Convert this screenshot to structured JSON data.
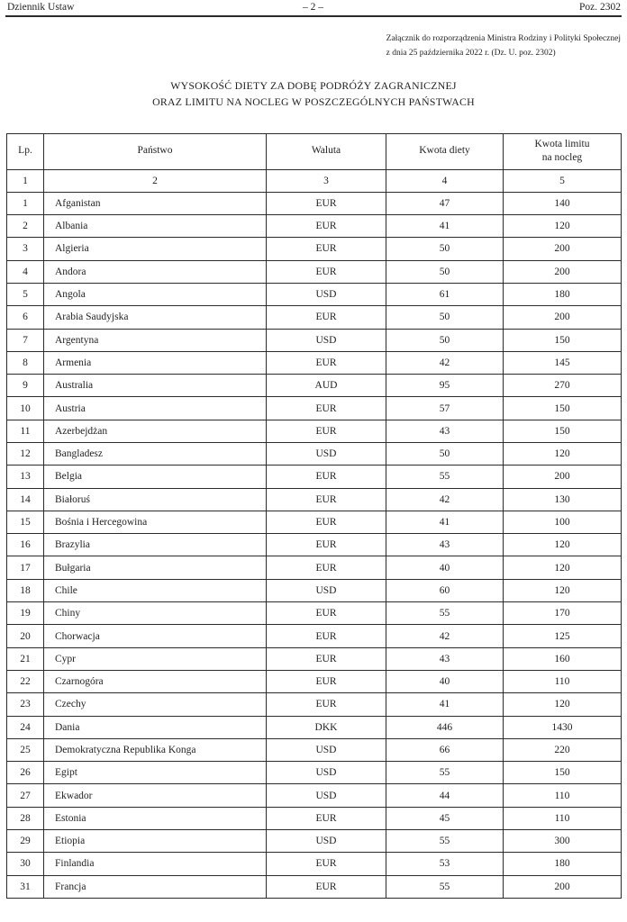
{
  "page_header": {
    "journal_name": "Dziennik Ustaw",
    "page_marker": "– 2 –",
    "position_marker": "Poz. 2302"
  },
  "annotation": {
    "line1": "Załącznik do rozporządzenia Ministra Rodziny i Polityki Społecznej",
    "line2": "z dnia 25 października 2022 r. (Dz. U. poz. 2302)"
  },
  "title": {
    "line1": "WYSOKOŚĆ DIETY ZA DOBĘ PODRÓŻY ZAGRANICZNEJ",
    "line2": "ORAZ LIMITU NA NOCLEG W POSZCZEGÓLNYCH PAŃSTWACH"
  },
  "table": {
    "headers": [
      "Lp.",
      "Państwo",
      "Waluta",
      "Kwota diety",
      "Kwota limitu\nna nocleg"
    ],
    "column_numbers": [
      "1",
      "2",
      "3",
      "4",
      "5"
    ],
    "rows": [
      {
        "lp": "1",
        "panstwo": "Afganistan",
        "waluta": "EUR",
        "kwota_diety": "47",
        "kwota_limitu": "140"
      },
      {
        "lp": "2",
        "panstwo": "Albania",
        "waluta": "EUR",
        "kwota_diety": "41",
        "kwota_limitu": "120"
      },
      {
        "lp": "3",
        "panstwo": "Algieria",
        "waluta": "EUR",
        "kwota_diety": "50",
        "kwota_limitu": "200"
      },
      {
        "lp": "4",
        "panstwo": "Andora",
        "waluta": "EUR",
        "kwota_diety": "50",
        "kwota_limitu": "200"
      },
      {
        "lp": "5",
        "panstwo": "Angola",
        "waluta": "USD",
        "kwota_diety": "61",
        "kwota_limitu": "180"
      },
      {
        "lp": "6",
        "panstwo": "Arabia Saudyjska",
        "waluta": "EUR",
        "kwota_diety": "50",
        "kwota_limitu": "200"
      },
      {
        "lp": "7",
        "panstwo": "Argentyna",
        "waluta": "USD",
        "kwota_diety": "50",
        "kwota_limitu": "150"
      },
      {
        "lp": "8",
        "panstwo": "Armenia",
        "waluta": "EUR",
        "kwota_diety": "42",
        "kwota_limitu": "145"
      },
      {
        "lp": "9",
        "panstwo": "Australia",
        "waluta": "AUD",
        "kwota_diety": "95",
        "kwota_limitu": "270"
      },
      {
        "lp": "10",
        "panstwo": "Austria",
        "waluta": "EUR",
        "kwota_diety": "57",
        "kwota_limitu": "150"
      },
      {
        "lp": "11",
        "panstwo": "Azerbejdżan",
        "waluta": "EUR",
        "kwota_diety": "43",
        "kwota_limitu": "150"
      },
      {
        "lp": "12",
        "panstwo": "Bangladesz",
        "waluta": "USD",
        "kwota_diety": "50",
        "kwota_limitu": "120"
      },
      {
        "lp": "13",
        "panstwo": "Belgia",
        "waluta": "EUR",
        "kwota_diety": "55",
        "kwota_limitu": "200"
      },
      {
        "lp": "14",
        "panstwo": "Białoruś",
        "waluta": "EUR",
        "kwota_diety": "42",
        "kwota_limitu": "130"
      },
      {
        "lp": "15",
        "panstwo": "Bośnia i Hercegowina",
        "waluta": "EUR",
        "kwota_diety": "41",
        "kwota_limitu": "100"
      },
      {
        "lp": "16",
        "panstwo": "Brazylia",
        "waluta": "EUR",
        "kwota_diety": "43",
        "kwota_limitu": "120"
      },
      {
        "lp": "17",
        "panstwo": "Bułgaria",
        "waluta": "EUR",
        "kwota_diety": "40",
        "kwota_limitu": "120"
      },
      {
        "lp": "18",
        "panstwo": "Chile",
        "waluta": "USD",
        "kwota_diety": "60",
        "kwota_limitu": "120"
      },
      {
        "lp": "19",
        "panstwo": "Chiny",
        "waluta": "EUR",
        "kwota_diety": "55",
        "kwota_limitu": "170"
      },
      {
        "lp": "20",
        "panstwo": "Chorwacja",
        "waluta": "EUR",
        "kwota_diety": "42",
        "kwota_limitu": "125"
      },
      {
        "lp": "21",
        "panstwo": "Cypr",
        "waluta": "EUR",
        "kwota_diety": "43",
        "kwota_limitu": "160"
      },
      {
        "lp": "22",
        "panstwo": "Czarnogóra",
        "waluta": "EUR",
        "kwota_diety": "40",
        "kwota_limitu": "110"
      },
      {
        "lp": "23",
        "panstwo": "Czechy",
        "waluta": "EUR",
        "kwota_diety": "41",
        "kwota_limitu": "120"
      },
      {
        "lp": "24",
        "panstwo": "Dania",
        "waluta": "DKK",
        "kwota_diety": "446",
        "kwota_limitu": "1430"
      },
      {
        "lp": "25",
        "panstwo": "Demokratyczna Republika Konga",
        "waluta": "USD",
        "kwota_diety": "66",
        "kwota_limitu": "220"
      },
      {
        "lp": "26",
        "panstwo": "Egipt",
        "waluta": "USD",
        "kwota_diety": "55",
        "kwota_limitu": "150"
      },
      {
        "lp": "27",
        "panstwo": "Ekwador",
        "waluta": "USD",
        "kwota_diety": "44",
        "kwota_limitu": "110"
      },
      {
        "lp": "28",
        "panstwo": "Estonia",
        "waluta": "EUR",
        "kwota_diety": "45",
        "kwota_limitu": "110"
      },
      {
        "lp": "29",
        "panstwo": "Etiopia",
        "waluta": "USD",
        "kwota_diety": "55",
        "kwota_limitu": "300"
      },
      {
        "lp": "30",
        "panstwo": "Finlandia",
        "waluta": "EUR",
        "kwota_diety": "53",
        "kwota_limitu": "180"
      },
      {
        "lp": "31",
        "panstwo": "Francja",
        "waluta": "EUR",
        "kwota_diety": "55",
        "kwota_limitu": "200"
      }
    ]
  },
  "colors": {
    "text": "#1f1f1f",
    "border": "#2b2b2b",
    "background": "#ffffff"
  }
}
